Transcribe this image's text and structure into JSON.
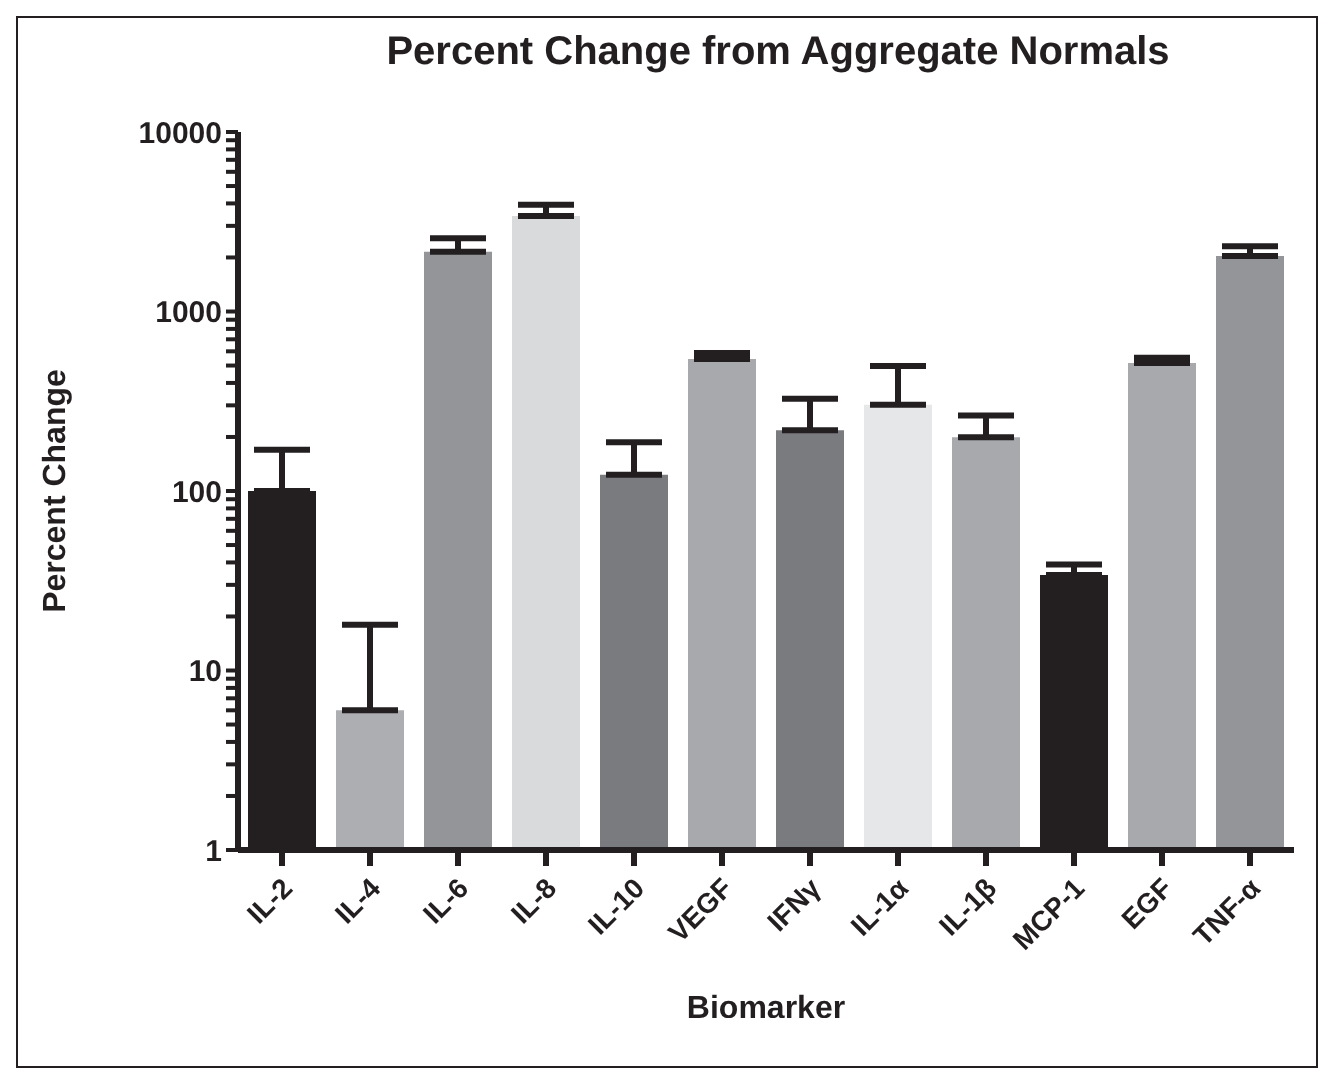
{
  "chart_data": {
    "type": "bar",
    "title": "Percent Change from Aggregate Normals",
    "xlabel": "Biomarker",
    "ylabel": "Percent Change",
    "categories": [
      "IL-2",
      "IL-4",
      "IL-6",
      "IL-8",
      "IL-10",
      "VEGF",
      "IFNγ",
      "IL-1α",
      "IL-1β",
      "MCP-1",
      "EGF",
      "TNF-α"
    ],
    "values": [
      100,
      6,
      2150,
      3400,
      123,
      543,
      218,
      302,
      199,
      34,
      516,
      2040
    ],
    "colors": [
      "#231f20",
      "#adaeb2",
      "#939598",
      "#d9dadb",
      "#7a7b7f",
      "#a7a9ac",
      "#7a7b7f",
      "#e6e7e8",
      "#a7a9ac",
      "#231f20",
      "#a7a9ac",
      "#939598"
    ],
    "errors": [
      [
        100,
        170
      ],
      [
        6,
        18
      ],
      [
        2150,
        2560
      ],
      [
        3400,
        3930
      ],
      [
        123,
        187
      ],
      [
        543,
        587
      ],
      [
        218,
        327
      ],
      [
        302,
        497
      ],
      [
        199,
        263
      ],
      [
        34,
        39
      ],
      [
        516,
        552
      ],
      [
        2040,
        2310
      ]
    ],
    "log": "y",
    "ylim": [
      1,
      10000
    ],
    "yticks": [
      1,
      {
        "value": 2,
        "label": null
      },
      {
        "value": 3,
        "label": null
      },
      {
        "value": 4,
        "label": null
      },
      {
        "value": 5,
        "label": null
      },
      {
        "value": 6,
        "label": null
      },
      {
        "value": 7,
        "label": null
      },
      {
        "value": 8,
        "label": null
      },
      {
        "value": 9,
        "label": null
      },
      10,
      {
        "value": 20,
        "label": null
      },
      {
        "value": 30,
        "label": null
      },
      {
        "value": 40,
        "label": null
      },
      {
        "value": 50,
        "label": null
      },
      {
        "value": 60,
        "label": null
      },
      {
        "value": 70,
        "label": null
      },
      {
        "value": 80,
        "label": null
      },
      {
        "value": 90,
        "label": null
      },
      100,
      {
        "value": 200,
        "label": null
      },
      {
        "value": 300,
        "label": null
      },
      {
        "value": 400,
        "label": null
      },
      {
        "value": 500,
        "label": null
      },
      {
        "value": 600,
        "label": null
      },
      {
        "value": 700,
        "label": null
      },
      {
        "value": 800,
        "label": null
      },
      {
        "value": 900,
        "label": null
      },
      1000,
      {
        "value": 2000,
        "label": null
      },
      {
        "value": 3000,
        "label": null
      },
      {
        "value": 4000,
        "label": null
      },
      {
        "value": 5000,
        "label": null
      },
      {
        "value": 6000,
        "label": null
      },
      {
        "value": 7000,
        "label": null
      },
      {
        "value": 8000,
        "label": null
      },
      {
        "value": 9000,
        "label": null
      },
      10000
    ],
    "grid": false,
    "legend": false
  }
}
